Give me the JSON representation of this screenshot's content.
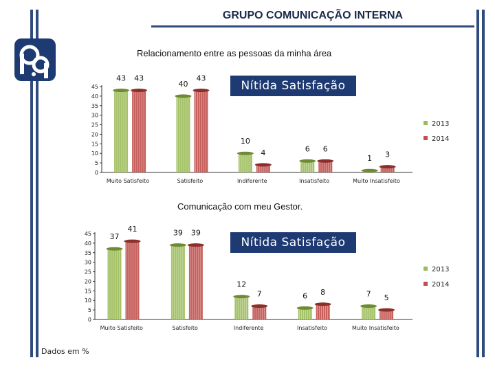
{
  "header": {
    "title": "GRUPO COMUNICAÇÃO INTERNA"
  },
  "logo": {
    "icon": "p-logo-icon",
    "color": "#1e3a73"
  },
  "colors": {
    "green": "#9bbb59",
    "green_dark": "#6f8a35",
    "red": "#c0504d",
    "red_dark": "#8a2f2c",
    "banner": "#1e3a73",
    "axis": "#333333"
  },
  "chart_data": [
    {
      "type": "bar",
      "title": "Relacionamento entre as pessoas da minha área",
      "banner": "Nítida Satisfação",
      "categories": [
        "Muito Satisfeito",
        "Satisfeito",
        "Indiferente",
        "Insatisfeito",
        "Muito Insatisfeito"
      ],
      "series": [
        {
          "name": "2013",
          "values": [
            43,
            40,
            10,
            6,
            1
          ]
        },
        {
          "name": "2014",
          "values": [
            43,
            43,
            4,
            6,
            3
          ]
        }
      ],
      "ylim": [
        0,
        45
      ],
      "yticks": [
        "0",
        "5",
        "10",
        "15",
        "20",
        "25",
        "30",
        "35",
        "40",
        "45"
      ],
      "legend_position": "right"
    },
    {
      "type": "bar",
      "title": "Comunicação com meu Gestor.",
      "banner": "Nítida Satisfação",
      "categories": [
        "Muito Satisfeito",
        "Satisfeito",
        "Indiferente",
        "Insatisfeito",
        "Muito Insatisfeito"
      ],
      "series": [
        {
          "name": "2013",
          "values": [
            37,
            39,
            12,
            6,
            7
          ]
        },
        {
          "name": "2014",
          "values": [
            41,
            39,
            7,
            8,
            5
          ]
        }
      ],
      "ylim": [
        0,
        45
      ],
      "yticks": [
        "0",
        "5",
        "10",
        "15",
        "20",
        "25",
        "30",
        "35",
        "40",
        "45"
      ],
      "legend_position": "right"
    }
  ],
  "footnote": "Dados em %"
}
